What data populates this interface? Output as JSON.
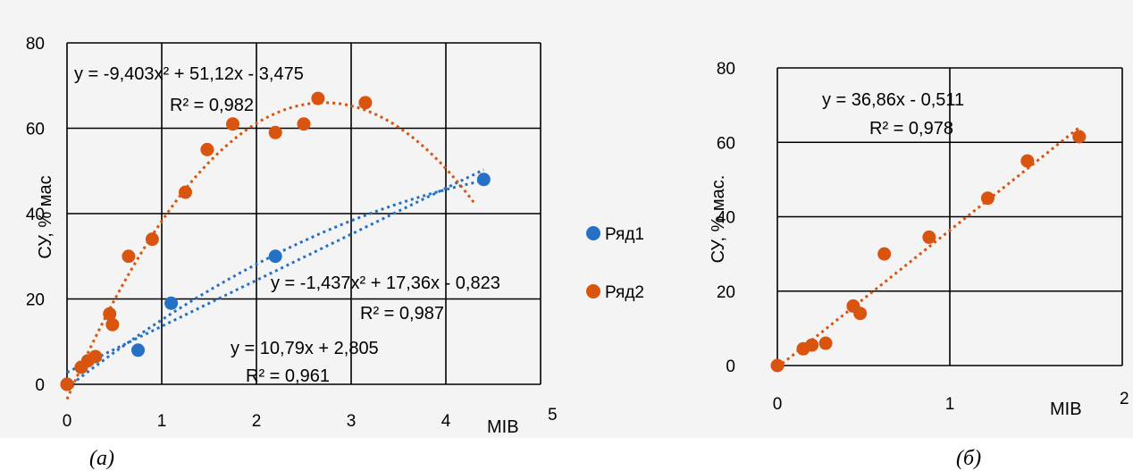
{
  "colors": {
    "series1": "#2471c6",
    "series2": "#d9540f",
    "background": "#f4f4f4"
  },
  "chart_data": [
    {
      "type": "scatter",
      "panel_label": "(a)",
      "xlabel": "MIB",
      "ylabel": "СУ, % мас",
      "xlim": [
        0,
        5
      ],
      "ylim": [
        0,
        80
      ],
      "x_ticks": [
        "0",
        "1",
        "2",
        "3",
        "4",
        "5"
      ],
      "y_ticks": [
        "0",
        "20",
        "40",
        "60",
        "80"
      ],
      "grid": true,
      "legend_position": "right",
      "series": [
        {
          "name": "Ряд1",
          "color": "#2471c6",
          "x": [
            0,
            0.75,
            1.1,
            2.2,
            4.4
          ],
          "y": [
            0,
            8,
            19,
            30,
            48
          ]
        },
        {
          "name": "Ряд2",
          "color": "#d9540f",
          "x": [
            0,
            0.15,
            0.22,
            0.3,
            0.45,
            0.48,
            0.65,
            0.9,
            1.25,
            1.48,
            1.75,
            2.2,
            2.5,
            2.65,
            3.15
          ],
          "y": [
            0,
            4,
            5.5,
            6.5,
            16.5,
            14,
            30,
            34,
            45,
            55,
            61,
            59,
            61,
            67,
            66
          ]
        }
      ],
      "trendlines": [
        {
          "series": "Ряд1",
          "kind": "linear",
          "coefficients": [
            10.79,
            2.805
          ],
          "x_range": [
            0,
            4.4
          ],
          "equation": "y = 10,79x + 2,805",
          "r2": "R² = 0,961"
        },
        {
          "series": "Ряд1",
          "kind": "poly2",
          "coefficients": [
            -1.437,
            17.36,
            -0.823
          ],
          "x_range": [
            0,
            4.4
          ],
          "equation": "y = -1,437x² + 17,36x - 0,823",
          "r2": "R² = 0,987"
        },
        {
          "series": "Ряд2",
          "kind": "poly2",
          "coefficients": [
            -9.403,
            51.12,
            -3.475
          ],
          "x_range": [
            0,
            4.3
          ],
          "equation": "y = -9,403x² + 51,12x - 3,475",
          "r2": "R² = 0,982"
        }
      ]
    },
    {
      "type": "scatter",
      "panel_label": "(б)",
      "xlabel": "MIB",
      "ylabel": "СУ, % мас.",
      "xlim": [
        0,
        2
      ],
      "ylim": [
        0,
        80
      ],
      "x_ticks": [
        "0",
        "1",
        "2"
      ],
      "y_ticks": [
        "0",
        "20",
        "40",
        "60",
        "80"
      ],
      "grid": true,
      "series": [
        {
          "name": "",
          "color": "#d9540f",
          "x": [
            0,
            0.15,
            0.2,
            0.28,
            0.44,
            0.48,
            0.62,
            0.88,
            1.22,
            1.45,
            1.75
          ],
          "y": [
            0,
            4.5,
            5.5,
            6,
            16,
            14,
            30,
            34.5,
            45,
            55,
            61.5
          ]
        }
      ],
      "trendlines": [
        {
          "series": 0,
          "kind": "linear",
          "coefficients": [
            36.86,
            -0.511
          ],
          "x_range": [
            0,
            1.75
          ],
          "equation": "y = 36,86x - 0,511",
          "r2": "R² = 0,978"
        }
      ]
    }
  ]
}
